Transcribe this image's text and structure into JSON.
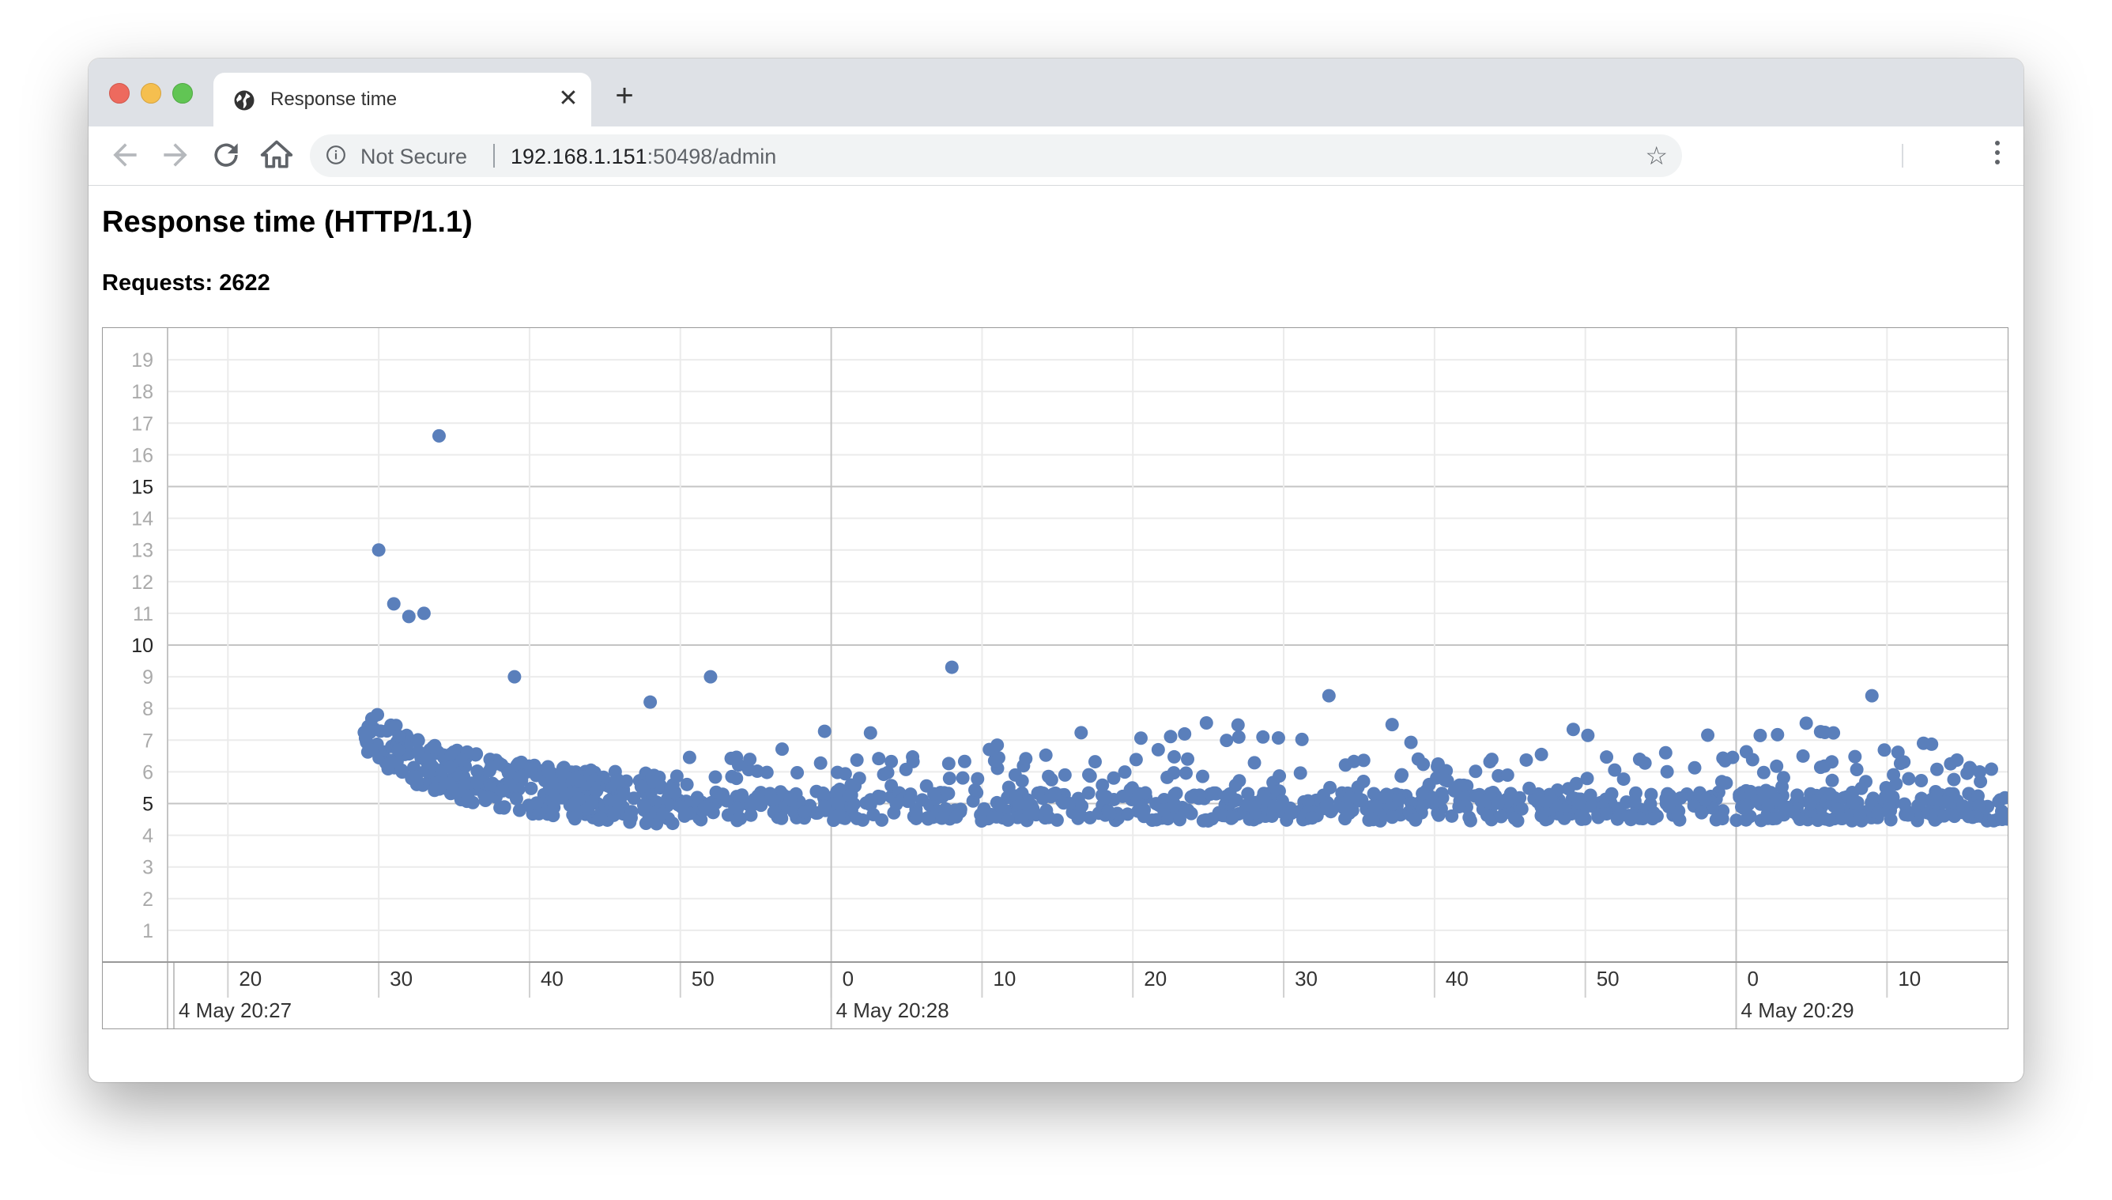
{
  "browser": {
    "tab_title": "Response time",
    "tab_close": "✕",
    "new_tab": "+",
    "security_label": "Not Secure",
    "url_host": "192.168.1.151",
    "url_rest": ":50498/admin",
    "icons": {
      "back": "back-arrow-icon",
      "forward": "forward-arrow-icon",
      "reload": "reload-icon",
      "home": "home-icon",
      "star": "star-icon",
      "menu": "kebab-menu-icon"
    }
  },
  "page": {
    "title": "Response time (HTTP/1.1)",
    "requests_label": "Requests: 2622"
  },
  "chart_data": {
    "type": "scatter",
    "title": "",
    "xlabel": "",
    "ylabel": "",
    "color": "#5a7fbb",
    "ylim": [
      0,
      20
    ],
    "y_ticks": [
      1,
      2,
      3,
      4,
      5,
      6,
      7,
      8,
      9,
      10,
      11,
      12,
      13,
      14,
      15,
      16,
      17,
      18,
      19
    ],
    "y_major_ticks": [
      5,
      10,
      15
    ],
    "x_range_seconds": [
      "4 May 20:27:16",
      "4 May 20:29:18"
    ],
    "x_minor_tick_labels": [
      "20",
      "30",
      "40",
      "50",
      "0",
      "10",
      "20",
      "30",
      "40",
      "50",
      "0",
      "10"
    ],
    "x_major_labels": [
      "4 May 20:27",
      "4 May 20:28",
      "4 May 20:29"
    ],
    "grid": true,
    "notable_points": [
      {
        "x": "4 May 20:27:34",
        "y": 16.6
      },
      {
        "x": "4 May 20:27:30",
        "y": 13.0
      },
      {
        "x": "4 May 20:27:31",
        "y": 11.3
      },
      {
        "x": "4 May 20:27:33",
        "y": 11.0
      },
      {
        "x": "4 May 20:27:32",
        "y": 10.9
      },
      {
        "x": "4 May 20:27:52",
        "y": 9.0
      },
      {
        "x": "4 May 20:28:08",
        "y": 9.3
      },
      {
        "x": "4 May 20:28:33",
        "y": 8.4
      },
      {
        "x": "4 May 20:29:09",
        "y": 8.4
      },
      {
        "x": "4 May 20:27:39",
        "y": 9.0
      },
      {
        "x": "4 May 20:27:48",
        "y": 8.2
      }
    ],
    "series": [
      {
        "points_note": "dense cluster: ~7 near 20:27:30 decaying to ~5 by 20:27:50, then stable around 4.3–6 with occasional 6–9 outliers",
        "typical_value": 5.0
      }
    ]
  }
}
